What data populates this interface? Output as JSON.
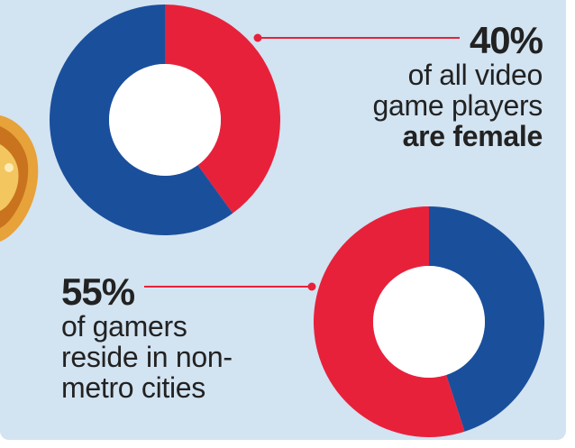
{
  "colors": {
    "background": "#d2e3f1",
    "blue": "#1a4f9c",
    "red": "#e8213b",
    "text": "#222222"
  },
  "stats": [
    {
      "percent": "40%",
      "line1": "of all video",
      "line2": "game players",
      "line3": "are female"
    },
    {
      "percent": "55%",
      "line1": "of gamers",
      "line2": "reside in non-",
      "line3": "metro cities"
    }
  ],
  "chart_data": [
    {
      "type": "pie",
      "style": "donut",
      "slices": [
        {
          "value": 40,
          "color": "#e8213b"
        },
        {
          "value": 60,
          "color": "#1a4f9c"
        }
      ]
    },
    {
      "type": "pie",
      "style": "donut",
      "slices": [
        {
          "value": 45,
          "color": "#1a4f9c"
        },
        {
          "value": 55,
          "color": "#e8213b"
        }
      ]
    }
  ]
}
